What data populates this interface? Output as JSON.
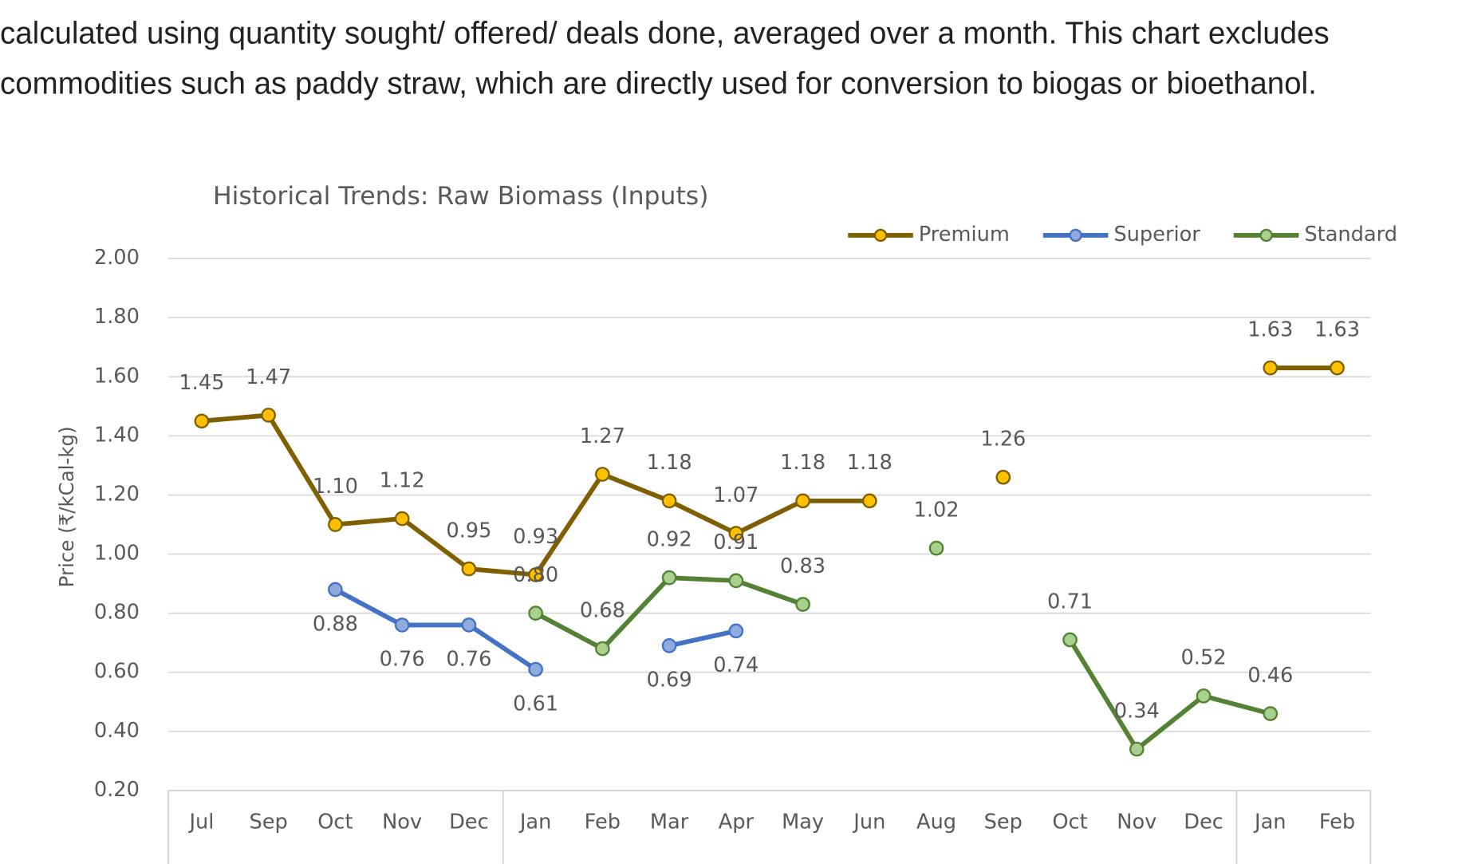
{
  "intro": [
    "calculated using quantity sought/ offered/ deals done, averaged over a month. This chart excludes",
    "commodities such as paddy straw, which are directly used for conversion to biogas or bioethanol."
  ],
  "chart_data": {
    "type": "line",
    "title": "Historical Trends: Raw Biomass (Inputs)",
    "y_label": "Price (₹/kCal-kg)",
    "categories": [
      "Jul",
      "Sep",
      "Oct",
      "Nov",
      "Dec",
      "Jan",
      "Feb",
      "Mar",
      "Apr",
      "May",
      "Jun",
      "Aug",
      "Sep",
      "Oct",
      "Nov",
      "Dec",
      "Jan",
      "Feb"
    ],
    "series": [
      {
        "name": "Premium",
        "color": "#7f6000",
        "marker_color": "#ffc000",
        "values": [
          1.45,
          1.47,
          1.1,
          1.12,
          0.95,
          0.93,
          1.27,
          1.18,
          1.07,
          1.18,
          1.18,
          null,
          1.26,
          null,
          null,
          null,
          1.63,
          1.63
        ],
        "value_labels": [
          "1.45",
          "1.47",
          "1.10",
          "1.12",
          "0.95",
          "0.93",
          "1.27",
          "1.18",
          "1.07",
          "1.18",
          "1.18",
          null,
          "1.26",
          null,
          null,
          null,
          "1.63",
          "1.63"
        ]
      },
      {
        "name": "Superior",
        "color": "#4472c4",
        "marker_color": "#8faadc",
        "values": [
          null,
          null,
          0.88,
          0.76,
          0.76,
          0.61,
          null,
          0.69,
          0.74,
          null,
          null,
          null,
          null,
          null,
          null,
          null,
          null,
          null
        ],
        "value_labels": [
          null,
          null,
          "0.88",
          "0.76",
          "0.76",
          "0.61",
          null,
          "0.69",
          "0.74",
          null,
          null,
          null,
          null,
          null,
          null,
          null,
          null,
          null
        ]
      },
      {
        "name": "Standard",
        "color": "#548235",
        "marker_color": "#a9d18e",
        "values": [
          null,
          null,
          null,
          null,
          null,
          0.8,
          0.68,
          0.92,
          0.91,
          0.83,
          null,
          1.02,
          null,
          0.71,
          0.34,
          0.52,
          0.46,
          null
        ],
        "value_labels": [
          null,
          null,
          null,
          null,
          null,
          "0.80",
          "0.68",
          "0.92",
          "0.91",
          "0.83",
          null,
          "1.02",
          null,
          "0.71",
          "0.34",
          "0.52",
          "0.46",
          null
        ]
      }
    ],
    "ylim": [
      0.2,
      2.0
    ],
    "yticks": [
      {
        "value": 0.2,
        "label": "0.20"
      },
      {
        "value": 0.4,
        "label": "0.40"
      },
      {
        "value": 0.6,
        "label": "0.60"
      },
      {
        "value": 0.8,
        "label": "0.80"
      },
      {
        "value": 1.0,
        "label": "1.00"
      },
      {
        "value": 1.2,
        "label": "1.20"
      },
      {
        "value": 1.4,
        "label": "1.40"
      },
      {
        "value": 1.6,
        "label": "1.60"
      },
      {
        "value": 1.8,
        "label": "1.80"
      },
      {
        "value": 2.0,
        "label": "2.00"
      }
    ],
    "grid": true,
    "legend": "top-right"
  }
}
